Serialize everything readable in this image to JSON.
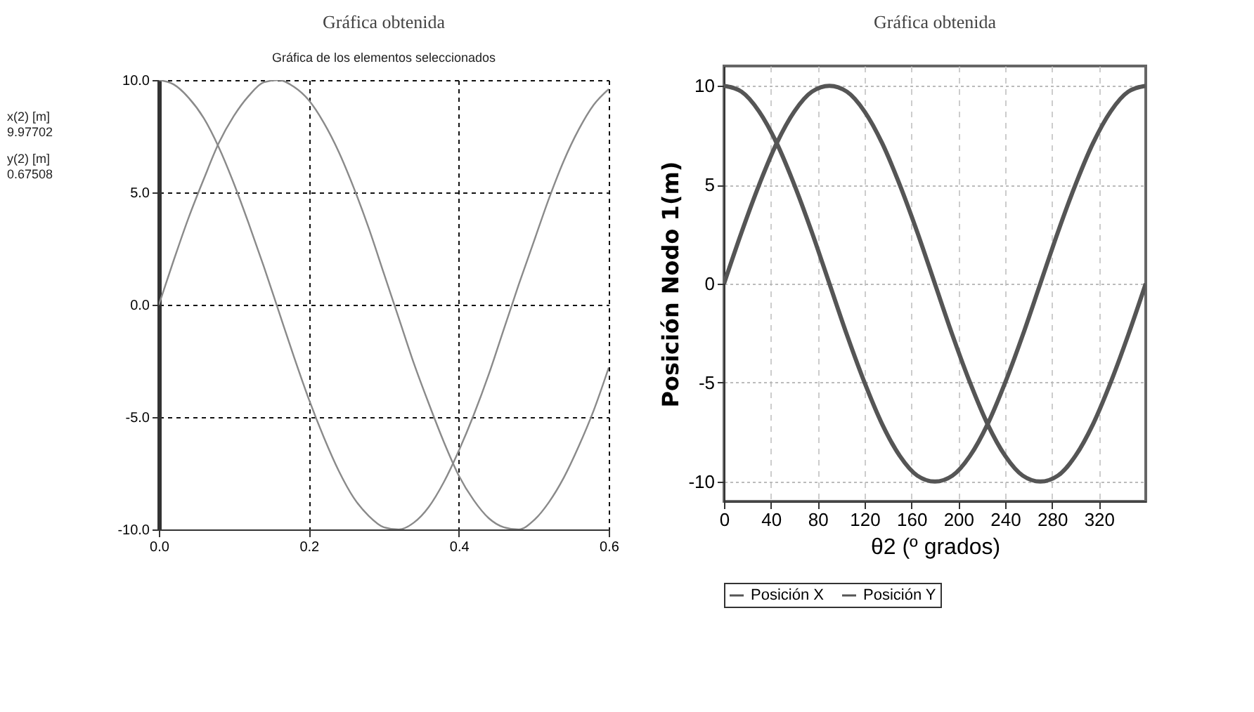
{
  "chart_data": [
    {
      "type": "line",
      "title": "Gráfica obtenida",
      "subtitle": "Gráfica de los elementos seleccionados",
      "annotations": [
        "x(2) [m]",
        "9.97702",
        "y(2) [m]",
        "0.67508"
      ],
      "x": [
        0,
        0.02,
        0.04,
        0.06,
        0.08,
        0.1,
        0.12,
        0.14,
        0.16,
        0.18,
        0.2,
        0.22,
        0.24,
        0.26,
        0.28,
        0.3,
        0.32,
        0.34,
        0.36,
        0.38,
        0.4,
        0.42,
        0.44,
        0.46,
        0.48,
        0.5,
        0.52,
        0.54,
        0.56,
        0.58,
        0.6
      ],
      "series": [
        {
          "color": "#8a8a8a",
          "values": [
            10,
            9.8,
            9.2,
            8.3,
            7,
            5.4,
            3.6,
            1.7,
            -0.3,
            -2.3,
            -4.2,
            -5.9,
            -7.4,
            -8.6,
            -9.4,
            -9.9,
            -10,
            -9.7,
            -9,
            -7.9,
            -6.5,
            -4.9,
            -3.1,
            -1.1,
            0.9,
            2.8,
            4.7,
            6.4,
            7.8,
            8.9,
            9.6
          ]
        },
        {
          "color": "#8a8a8a",
          "values": [
            0,
            2,
            3.9,
            5.6,
            7.2,
            8.4,
            9.3,
            9.9,
            10,
            9.7,
            9.1,
            8.1,
            6.8,
            5.2,
            3.4,
            1.4,
            -0.6,
            -2.6,
            -4.4,
            -6.1,
            -7.6,
            -8.7,
            -9.5,
            -9.9,
            -10,
            -9.6,
            -8.8,
            -7.7,
            -6.3,
            -4.7,
            -2.8
          ]
        }
      ],
      "xlim": [
        0,
        0.6
      ],
      "xticks": [
        {
          "value": 0,
          "label": "0.0"
        },
        {
          "value": 0.2,
          "label": "0.2"
        },
        {
          "value": 0.4,
          "label": "0.4"
        },
        {
          "value": 0.6,
          "label": "0.6"
        }
      ],
      "ylim": [
        -10,
        10
      ],
      "yticks": [
        {
          "value": -10,
          "label": "-10.0"
        },
        {
          "value": -5,
          "label": "-5.0"
        },
        {
          "value": 0,
          "label": "0.0"
        },
        {
          "value": 5,
          "label": "5.0"
        },
        {
          "value": 10,
          "label": "10.0"
        }
      ],
      "grid": true,
      "line_style": "solid"
    },
    {
      "type": "line",
      "title": "Gráfica obtenida",
      "xlabel": "θ2 (º grados)",
      "ylabel": "Posición Nodo 1(m)",
      "x": [
        0,
        15,
        30,
        45,
        60,
        75,
        90,
        105,
        120,
        135,
        150,
        165,
        180,
        195,
        210,
        225,
        240,
        255,
        270,
        285,
        300,
        315,
        330,
        345,
        360
      ],
      "series": [
        {
          "name": "Posición X",
          "color": "#555555",
          "values": [
            10,
            9.7,
            8.7,
            7.1,
            5,
            2.6,
            0,
            -2.6,
            -5,
            -7.1,
            -8.7,
            -9.7,
            -10,
            -9.7,
            -8.7,
            -7.1,
            -5,
            -2.6,
            0,
            2.6,
            5,
            7.1,
            8.7,
            9.7,
            10
          ]
        },
        {
          "name": "Posición Y",
          "color": "#555555",
          "values": [
            0,
            2.6,
            5,
            7.1,
            8.7,
            9.7,
            10,
            9.7,
            8.7,
            7.1,
            5,
            2.6,
            0,
            -2.6,
            -5,
            -7.1,
            -8.7,
            -9.7,
            -10,
            -9.7,
            -8.7,
            -7.1,
            -5,
            -2.6,
            0
          ]
        }
      ],
      "xlim": [
        0,
        360
      ],
      "xticks": [
        0,
        40,
        80,
        120,
        160,
        200,
        240,
        280,
        320
      ],
      "ylim": [
        -11,
        11
      ],
      "yticks": [
        -10,
        -5,
        0,
        5,
        10
      ],
      "grid": true,
      "legend": "bottom",
      "line_style": "solid"
    }
  ]
}
